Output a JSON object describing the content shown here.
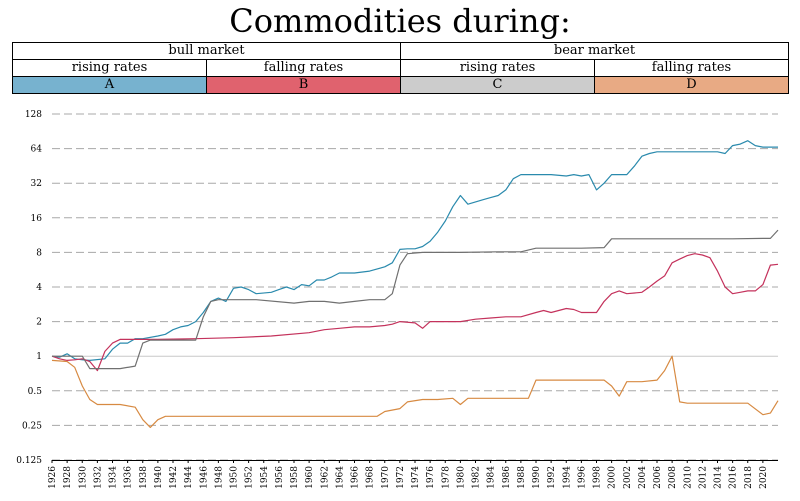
{
  "title": "Commodities during:",
  "legend": {
    "row1": [
      "bull market",
      "bear market"
    ],
    "row2": [
      "rising rates",
      "falling rates",
      "rising rates",
      "falling rates"
    ],
    "row3": [
      {
        "letter": "A",
        "color": "#77b2cf"
      },
      {
        "letter": "B",
        "color": "#e0626e"
      },
      {
        "letter": "C",
        "color": "#cccccc"
      },
      {
        "letter": "D",
        "color": "#e8aa84"
      }
    ]
  },
  "chart_data": {
    "type": "line",
    "title": "Commodities during:",
    "y_scale": "log2",
    "ylim": [
      0.125,
      128
    ],
    "xlim": [
      1926,
      2022
    ],
    "y_ticks": [
      "0.125",
      "0.25",
      "0.5",
      "1",
      "2",
      "4",
      "8",
      "16",
      "32",
      "64",
      "128"
    ],
    "x_ticks": [
      "1926",
      "1928",
      "1930",
      "1932",
      "1934",
      "1936",
      "1938",
      "1940",
      "1942",
      "1944",
      "1946",
      "1948",
      "1950",
      "1952",
      "1954",
      "1956",
      "1958",
      "1960",
      "1962",
      "1964",
      "1966",
      "1968",
      "1970",
      "1972",
      "1974",
      "1976",
      "1978",
      "1980",
      "1982",
      "1984",
      "1986",
      "1988",
      "1990",
      "1992",
      "1994",
      "1996",
      "1998",
      "2000",
      "2002",
      "2004",
      "2006",
      "2008",
      "2010",
      "2012",
      "2014",
      "2016",
      "2018",
      "2020"
    ],
    "grid": true,
    "series": [
      {
        "color": "#2a8aad",
        "points": [
          [
            1926,
            1
          ],
          [
            1927,
            0.98
          ],
          [
            1928,
            1.05
          ],
          [
            1929,
            0.95
          ],
          [
            1930,
            0.93
          ],
          [
            1931,
            0.92
          ],
          [
            1933,
            0.95
          ],
          [
            1934,
            1.15
          ],
          [
            1935,
            1.3
          ],
          [
            1936,
            1.3
          ],
          [
            1937,
            1.42
          ],
          [
            1938,
            1.42
          ],
          [
            1940,
            1.5
          ],
          [
            1941,
            1.55
          ],
          [
            1942,
            1.7
          ],
          [
            1943,
            1.8
          ],
          [
            1944,
            1.85
          ],
          [
            1945,
            2.0
          ],
          [
            1946,
            2.4
          ],
          [
            1947,
            3.0
          ],
          [
            1948,
            3.2
          ],
          [
            1949,
            3.0
          ],
          [
            1950,
            3.9
          ],
          [
            1951,
            4.0
          ],
          [
            1952,
            3.8
          ],
          [
            1953,
            3.5
          ],
          [
            1955,
            3.6
          ],
          [
            1956,
            3.8
          ],
          [
            1957,
            4.0
          ],
          [
            1958,
            3.8
          ],
          [
            1959,
            4.2
          ],
          [
            1960,
            4.1
          ],
          [
            1961,
            4.6
          ],
          [
            1962,
            4.6
          ],
          [
            1963,
            4.9
          ],
          [
            1964,
            5.3
          ],
          [
            1965,
            5.3
          ],
          [
            1966,
            5.3
          ],
          [
            1968,
            5.5
          ],
          [
            1970,
            6.0
          ],
          [
            1971,
            6.5
          ],
          [
            1972,
            8.5
          ],
          [
            1973,
            8.6
          ],
          [
            1974,
            8.6
          ],
          [
            1975,
            9.0
          ],
          [
            1976,
            10
          ],
          [
            1977,
            12
          ],
          [
            1978,
            15
          ],
          [
            1979,
            20
          ],
          [
            1980,
            25
          ],
          [
            1981,
            21
          ],
          [
            1982,
            22
          ],
          [
            1983,
            23
          ],
          [
            1984,
            24
          ],
          [
            1985,
            25
          ],
          [
            1986,
            28
          ],
          [
            1987,
            35
          ],
          [
            1988,
            38
          ],
          [
            1990,
            38
          ],
          [
            1992,
            38
          ],
          [
            1994,
            37
          ],
          [
            1995,
            38
          ],
          [
            1996,
            37
          ],
          [
            1997,
            38
          ],
          [
            1998,
            28
          ],
          [
            1999,
            32
          ],
          [
            2000,
            38
          ],
          [
            2001,
            38
          ],
          [
            2002,
            38
          ],
          [
            2003,
            45
          ],
          [
            2004,
            55
          ],
          [
            2005,
            58
          ],
          [
            2006,
            60
          ],
          [
            2007,
            60
          ],
          [
            2009,
            60
          ],
          [
            2012,
            60
          ],
          [
            2014,
            60
          ],
          [
            2015,
            58
          ],
          [
            2016,
            68
          ],
          [
            2017,
            70
          ],
          [
            2018,
            75
          ],
          [
            2019,
            68
          ],
          [
            2020,
            66
          ],
          [
            2021,
            66
          ],
          [
            2022,
            66
          ]
        ]
      },
      {
        "color": "#c4325c",
        "points": [
          [
            1926,
            1
          ],
          [
            1927,
            0.95
          ],
          [
            1928,
            0.92
          ],
          [
            1929,
            0.93
          ],
          [
            1930,
            0.95
          ],
          [
            1931,
            0.9
          ],
          [
            1932,
            0.75
          ],
          [
            1933,
            1.1
          ],
          [
            1934,
            1.3
          ],
          [
            1935,
            1.4
          ],
          [
            1940,
            1.4
          ],
          [
            1945,
            1.42
          ],
          [
            1950,
            1.45
          ],
          [
            1955,
            1.5
          ],
          [
            1960,
            1.6
          ],
          [
            1962,
            1.7
          ],
          [
            1964,
            1.75
          ],
          [
            1966,
            1.8
          ],
          [
            1968,
            1.8
          ],
          [
            1970,
            1.85
          ],
          [
            1971,
            1.9
          ],
          [
            1972,
            2.0
          ],
          [
            1974,
            1.95
          ],
          [
            1975,
            1.75
          ],
          [
            1976,
            2.0
          ],
          [
            1978,
            2.0
          ],
          [
            1980,
            2.0
          ],
          [
            1982,
            2.1
          ],
          [
            1984,
            2.15
          ],
          [
            1986,
            2.2
          ],
          [
            1988,
            2.2
          ],
          [
            1990,
            2.4
          ],
          [
            1991,
            2.5
          ],
          [
            1992,
            2.4
          ],
          [
            1994,
            2.6
          ],
          [
            1995,
            2.55
          ],
          [
            1996,
            2.4
          ],
          [
            1998,
            2.4
          ],
          [
            1999,
            3.0
          ],
          [
            2000,
            3.5
          ],
          [
            2001,
            3.7
          ],
          [
            2002,
            3.5
          ],
          [
            2004,
            3.6
          ],
          [
            2005,
            4.0
          ],
          [
            2006,
            4.5
          ],
          [
            2007,
            5.0
          ],
          [
            2008,
            6.5
          ],
          [
            2009,
            7.0
          ],
          [
            2010,
            7.5
          ],
          [
            2011,
            7.8
          ],
          [
            2012,
            7.6
          ],
          [
            2013,
            7.2
          ],
          [
            2014,
            5.5
          ],
          [
            2015,
            4.0
          ],
          [
            2016,
            3.5
          ],
          [
            2017,
            3.6
          ],
          [
            2018,
            3.7
          ],
          [
            2019,
            3.7
          ],
          [
            2020,
            4.2
          ],
          [
            2021,
            6.2
          ],
          [
            2022,
            6.3
          ]
        ]
      },
      {
        "color": "#707070",
        "points": [
          [
            1926,
            1
          ],
          [
            1930,
            1
          ],
          [
            1931,
            0.78
          ],
          [
            1935,
            0.78
          ],
          [
            1937,
            0.82
          ],
          [
            1938,
            1.3
          ],
          [
            1939,
            1.38
          ],
          [
            1943,
            1.38
          ],
          [
            1945,
            1.38
          ],
          [
            1946,
            2.2
          ],
          [
            1947,
            3.0
          ],
          [
            1948,
            3.1
          ],
          [
            1950,
            3.1
          ],
          [
            1953,
            3.1
          ],
          [
            1958,
            2.9
          ],
          [
            1960,
            3.0
          ],
          [
            1962,
            3.0
          ],
          [
            1964,
            2.9
          ],
          [
            1966,
            3.0
          ],
          [
            1968,
            3.1
          ],
          [
            1970,
            3.1
          ],
          [
            1971,
            3.5
          ],
          [
            1972,
            6.2
          ],
          [
            1973,
            7.8
          ],
          [
            1975,
            8.0
          ],
          [
            1980,
            8.0
          ],
          [
            1985,
            8.1
          ],
          [
            1988,
            8.1
          ],
          [
            1990,
            8.7
          ],
          [
            1993,
            8.7
          ],
          [
            1996,
            8.7
          ],
          [
            1999,
            8.8
          ],
          [
            2000,
            10.5
          ],
          [
            2003,
            10.5
          ],
          [
            2008,
            10.5
          ],
          [
            2012,
            10.5
          ],
          [
            2016,
            10.5
          ],
          [
            2020,
            10.6
          ],
          [
            2021,
            10.6
          ],
          [
            2022,
            12.5
          ]
        ]
      },
      {
        "color": "#d78a42",
        "points": [
          [
            1926,
            0.92
          ],
          [
            1928,
            0.9
          ],
          [
            1929,
            0.8
          ],
          [
            1930,
            0.55
          ],
          [
            1931,
            0.42
          ],
          [
            1932,
            0.38
          ],
          [
            1934,
            0.38
          ],
          [
            1935,
            0.38
          ],
          [
            1937,
            0.36
          ],
          [
            1938,
            0.28
          ],
          [
            1939,
            0.24
          ],
          [
            1940,
            0.28
          ],
          [
            1941,
            0.3
          ],
          [
            1945,
            0.3
          ],
          [
            1950,
            0.3
          ],
          [
            1955,
            0.3
          ],
          [
            1960,
            0.3
          ],
          [
            1965,
            0.3
          ],
          [
            1969,
            0.3
          ],
          [
            1970,
            0.33
          ],
          [
            1972,
            0.35
          ],
          [
            1973,
            0.4
          ],
          [
            1975,
            0.42
          ],
          [
            1977,
            0.42
          ],
          [
            1979,
            0.43
          ],
          [
            1980,
            0.38
          ],
          [
            1981,
            0.43
          ],
          [
            1985,
            0.43
          ],
          [
            1989,
            0.43
          ],
          [
            1990,
            0.62
          ],
          [
            1991,
            0.62
          ],
          [
            1995,
            0.62
          ],
          [
            1999,
            0.62
          ],
          [
            2000,
            0.55
          ],
          [
            2001,
            0.45
          ],
          [
            2002,
            0.6
          ],
          [
            2004,
            0.6
          ],
          [
            2006,
            0.62
          ],
          [
            2007,
            0.75
          ],
          [
            2008,
            1.0
          ],
          [
            2009,
            0.4
          ],
          [
            2010,
            0.39
          ],
          [
            2014,
            0.39
          ],
          [
            2018,
            0.39
          ],
          [
            2020,
            0.31
          ],
          [
            2021,
            0.32
          ],
          [
            2022,
            0.41
          ]
        ]
      }
    ]
  }
}
